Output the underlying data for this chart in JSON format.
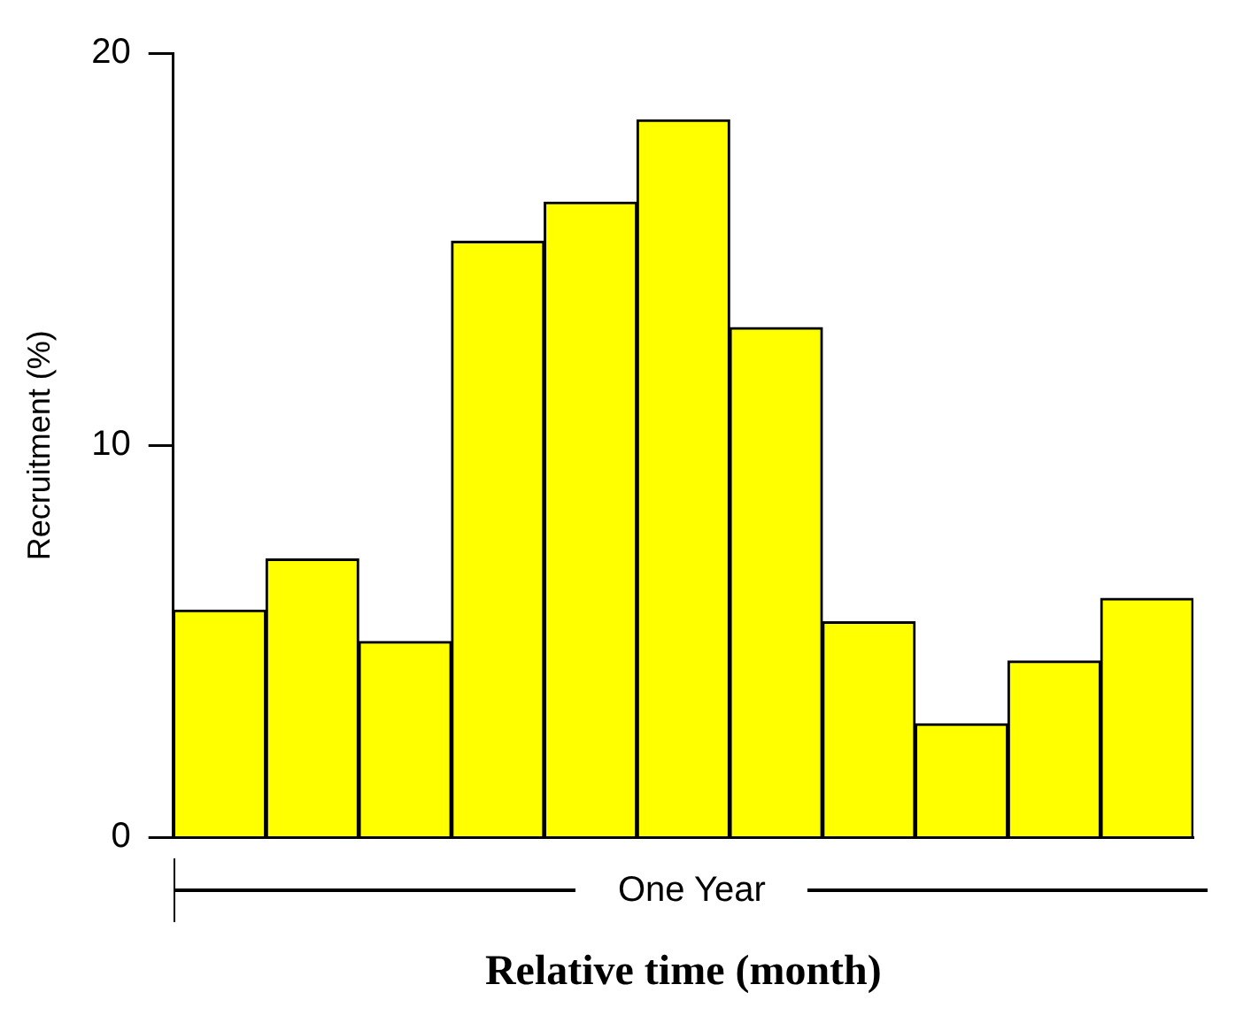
{
  "chart_data": {
    "type": "bar",
    "categories": [
      null,
      null,
      null,
      null,
      null,
      null,
      null,
      null,
      null,
      null,
      null
    ],
    "values": [
      5.8,
      7.1,
      5.0,
      15.2,
      16.2,
      18.3,
      13.0,
      5.5,
      2.9,
      4.5,
      6.1
    ],
    "color": "#ffff00",
    "xlabel": "Relative time (month)",
    "ylabel": "Recruitment (%)",
    "ylim": [
      0,
      20
    ],
    "yticks": [
      0,
      10,
      20
    ],
    "grid": false,
    "legend": false,
    "annotations": [
      "One Year"
    ]
  }
}
